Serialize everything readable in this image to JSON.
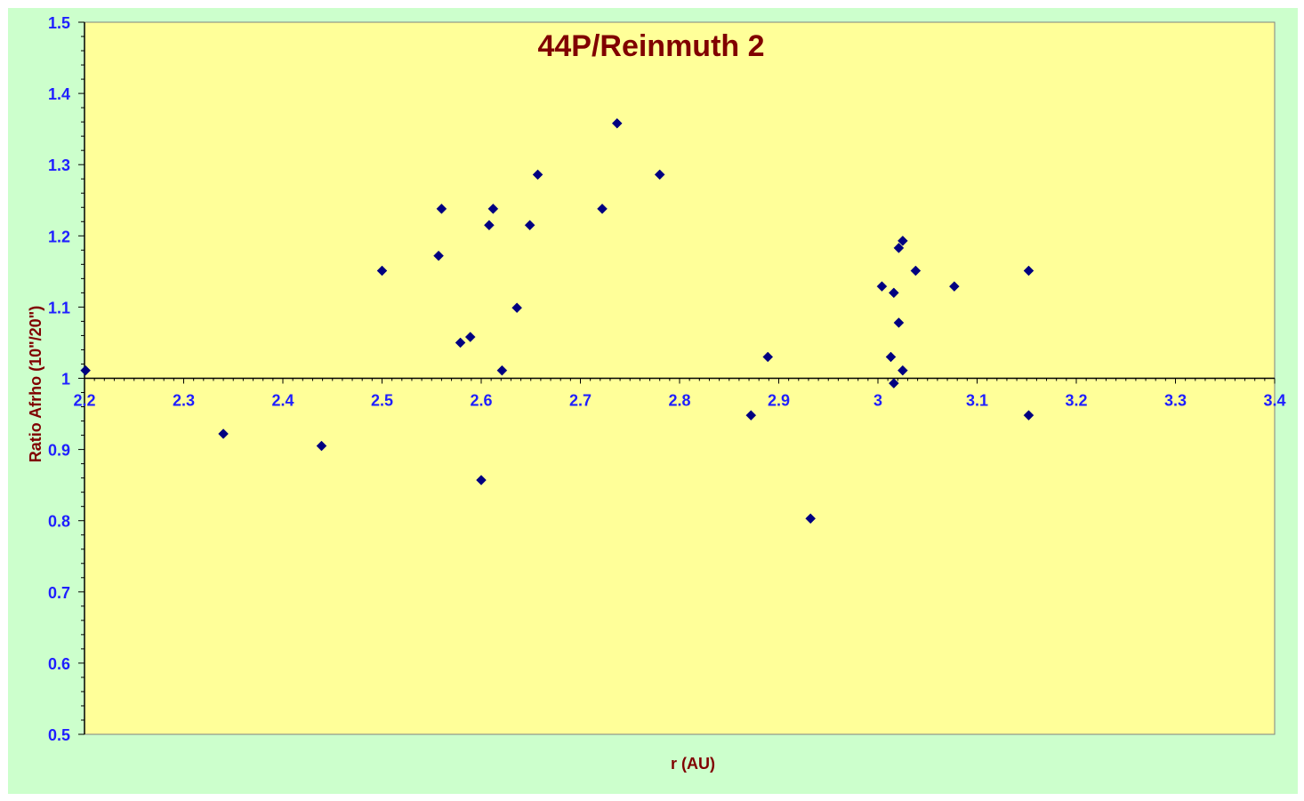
{
  "chart_data": {
    "type": "scatter",
    "title": "44P/Reinmuth 2",
    "xlabel": "r (AU)",
    "ylabel": "Ratio Afrho (10\"/20\")",
    "xlim": [
      2.2,
      3.4
    ],
    "ylim": [
      0.5,
      1.5
    ],
    "x_ticks": [
      "2.2",
      "2.3",
      "2.4",
      "2.5",
      "2.6",
      "2.7",
      "2.8",
      "2.9",
      "3",
      "3.1",
      "3.2",
      "3.3",
      "3.4"
    ],
    "y_ticks": [
      "0.5",
      "0.6",
      "0.7",
      "0.8",
      "0.9",
      "1",
      "1.1",
      "1.2",
      "1.3",
      "1.4",
      "1.5"
    ],
    "x_axis_crosses_at": 1.0,
    "grid": false,
    "legend": "none",
    "series": [
      {
        "marker": "diamond",
        "color": "#000080",
        "points": [
          [
            2.201,
            1.011
          ],
          [
            2.34,
            0.922
          ],
          [
            2.439,
            0.905
          ],
          [
            2.5,
            1.151
          ],
          [
            2.557,
            1.172
          ],
          [
            2.56,
            1.238
          ],
          [
            2.579,
            1.05
          ],
          [
            2.589,
            1.058
          ],
          [
            2.6,
            0.857
          ],
          [
            2.608,
            1.215
          ],
          [
            2.612,
            1.238
          ],
          [
            2.621,
            1.011
          ],
          [
            2.636,
            1.099
          ],
          [
            2.649,
            1.215
          ],
          [
            2.657,
            1.286
          ],
          [
            2.722,
            1.238
          ],
          [
            2.737,
            1.358
          ],
          [
            2.78,
            1.286
          ],
          [
            2.872,
            0.948
          ],
          [
            2.889,
            1.03
          ],
          [
            2.932,
            0.803
          ],
          [
            3.004,
            1.129
          ],
          [
            3.013,
            1.03
          ],
          [
            3.016,
            0.993
          ],
          [
            3.016,
            1.12
          ],
          [
            3.021,
            1.183
          ],
          [
            3.021,
            1.078
          ],
          [
            3.025,
            1.193
          ],
          [
            3.025,
            1.011
          ],
          [
            3.038,
            1.151
          ],
          [
            3.077,
            1.129
          ],
          [
            3.152,
            1.151
          ],
          [
            3.152,
            0.948
          ]
        ]
      }
    ]
  },
  "colors": {
    "page_background": "#ccffcc",
    "plot_background": "#ffff99",
    "tick_label": "#1f1fff",
    "title_and_axis_titles": "#800000",
    "marker": "#000080"
  }
}
